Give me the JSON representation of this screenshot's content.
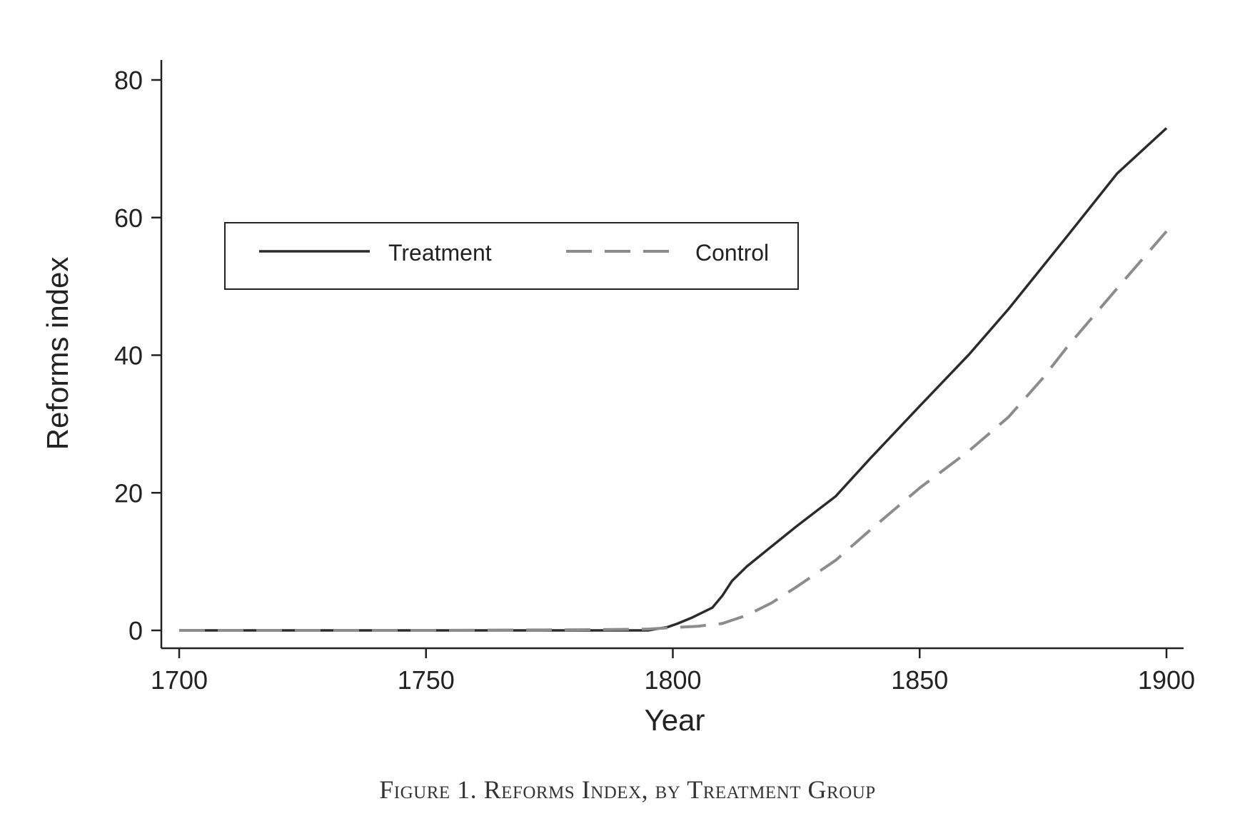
{
  "figure_caption": "Figure 1. Reforms Index, by Treatment Group",
  "chart_data": {
    "type": "line",
    "xlabel": "Year",
    "ylabel": "Reforms index",
    "xlim": [
      1696,
      1904
    ],
    "ylim": [
      -2,
      83
    ],
    "x_ticks": [
      1700,
      1750,
      1800,
      1850,
      1900
    ],
    "y_ticks": [
      0,
      20,
      40,
      60,
      80
    ],
    "grid": false,
    "legend_position": "upper-left (inside plot)",
    "series": [
      {
        "name": "Treatment",
        "style": "solid",
        "color": "#2b2b2b",
        "x": [
          1700,
          1750,
          1795,
          1799,
          1801,
          1804,
          1806,
          1808,
          1810,
          1812,
          1815,
          1820,
          1825,
          1833,
          1840,
          1850,
          1860,
          1868,
          1880,
          1890,
          1900
        ],
        "y": [
          0,
          0,
          0,
          0.5,
          1.0,
          1.9,
          2.6,
          3.3,
          5.0,
          7.2,
          9.3,
          12.2,
          15.1,
          19.5,
          25.0,
          32.6,
          40.1,
          46.7,
          57.4,
          66.4,
          73.0
        ]
      },
      {
        "name": "Control",
        "style": "dashed",
        "color": "#8c8c8c",
        "x": [
          1700,
          1750,
          1785,
          1795,
          1800,
          1805,
          1810,
          1815,
          1820,
          1825,
          1833,
          1840,
          1850,
          1860,
          1868,
          1875,
          1880,
          1890,
          1900
        ],
        "y": [
          0,
          0,
          0.1,
          0.2,
          0.4,
          0.6,
          1.0,
          2.2,
          4.0,
          6.3,
          10.2,
          14.6,
          20.7,
          26.1,
          31.0,
          36.7,
          41.3,
          49.7,
          58.0
        ]
      }
    ]
  }
}
